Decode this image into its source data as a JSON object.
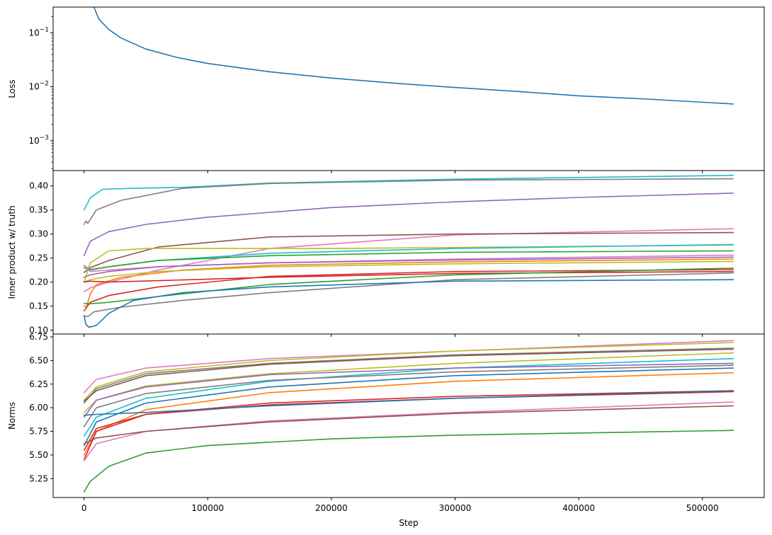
{
  "chart_data": [
    {
      "type": "line",
      "title": "",
      "xlabel": "",
      "ylabel": "Loss",
      "yscale": "log",
      "xlim": [
        -25000,
        550000
      ],
      "ylim": [
        0.00028,
        0.3
      ],
      "grid": false,
      "legend": "none",
      "yticks": [
        {
          "value": 0.1,
          "base": "10",
          "exp": "−1"
        },
        {
          "value": 0.01,
          "base": "10",
          "exp": "−2"
        },
        {
          "value": 0.001,
          "base": "10",
          "exp": "−3"
        }
      ],
      "series": [
        {
          "color": "#1f77b4",
          "x": [
            8000,
            12000,
            20000,
            30000,
            50000,
            75000,
            100000,
            150000,
            200000,
            250000,
            300000,
            350000,
            400000,
            450000,
            525000
          ],
          "y": [
            0.3,
            0.18,
            0.115,
            0.08,
            0.05,
            0.035,
            0.027,
            0.019,
            0.0145,
            0.0117,
            0.0097,
            0.0082,
            0.0068,
            0.006,
            0.0048
          ]
        }
      ]
    },
    {
      "type": "line",
      "title": "",
      "xlabel": "",
      "ylabel": "Inner product w/ truth",
      "xlim": [
        -25000,
        550000
      ],
      "ylim": [
        0.092,
        0.432
      ],
      "grid": false,
      "legend": "none",
      "yticks": [
        "0.10",
        "0.15",
        "0.20",
        "0.25",
        "0.30",
        "0.35",
        "0.40"
      ],
      "series": [
        {
          "color": "#17becf",
          "x": [
            0,
            5000,
            15000,
            40000,
            80000,
            150000,
            300000,
            525000
          ],
          "y": [
            0.35,
            0.375,
            0.393,
            0.395,
            0.397,
            0.406,
            0.414,
            0.422
          ]
        },
        {
          "color": "#7f7f7f",
          "x": [
            0,
            1500,
            3000,
            10000,
            30000,
            80000,
            150000,
            300000,
            525000
          ],
          "y": [
            0.32,
            0.327,
            0.322,
            0.35,
            0.37,
            0.395,
            0.405,
            0.412,
            0.415
          ]
        },
        {
          "color": "#9467bd",
          "x": [
            0,
            5000,
            20000,
            50000,
            100000,
            200000,
            300000,
            400000,
            525000
          ],
          "y": [
            0.255,
            0.285,
            0.305,
            0.32,
            0.335,
            0.355,
            0.367,
            0.376,
            0.385
          ]
        },
        {
          "color": "#e377c2",
          "x": [
            0,
            5000,
            20000,
            60000,
            150000,
            300000,
            525000
          ],
          "y": [
            0.18,
            0.188,
            0.2,
            0.225,
            0.27,
            0.298,
            0.311
          ]
        },
        {
          "color": "#8c564b",
          "x": [
            0,
            5000,
            20000,
            60000,
            150000,
            300000,
            525000
          ],
          "y": [
            0.22,
            0.23,
            0.245,
            0.273,
            0.294,
            0.3,
            0.303
          ]
        },
        {
          "color": "#bcbd22",
          "x": [
            0,
            5000,
            20000,
            50000,
            100000,
            200000,
            300000,
            525000
          ],
          "y": [
            0.2,
            0.24,
            0.265,
            0.27,
            0.27,
            0.27,
            0.272,
            0.277
          ]
        },
        {
          "color": "#17becf",
          "x": [
            0,
            5000,
            20000,
            60000,
            150000,
            300000,
            525000
          ],
          "y": [
            0.235,
            0.225,
            0.232,
            0.245,
            0.26,
            0.27,
            0.278
          ]
        },
        {
          "color": "#2ca02c",
          "x": [
            0,
            5000,
            20000,
            60000,
            150000,
            300000,
            525000
          ],
          "y": [
            0.23,
            0.226,
            0.232,
            0.245,
            0.255,
            0.262,
            0.265
          ]
        },
        {
          "color": "#e377c2",
          "x": [
            0,
            5000,
            20000,
            60000,
            150000,
            300000,
            525000
          ],
          "y": [
            0.235,
            0.222,
            0.225,
            0.232,
            0.24,
            0.248,
            0.256
          ]
        },
        {
          "color": "#9467bd",
          "x": [
            0,
            5000,
            20000,
            60000,
            150000,
            300000,
            525000
          ],
          "y": [
            0.21,
            0.215,
            0.222,
            0.232,
            0.24,
            0.246,
            0.252
          ]
        },
        {
          "color": "#ff7f0e",
          "x": [
            0,
            2000,
            5000,
            10000,
            30000,
            80000,
            150000,
            300000,
            525000
          ],
          "y": [
            0.15,
            0.148,
            0.175,
            0.195,
            0.21,
            0.225,
            0.235,
            0.242,
            0.248
          ]
        },
        {
          "color": "#bcbd22",
          "x": [
            0,
            5000,
            20000,
            60000,
            150000,
            300000,
            525000
          ],
          "y": [
            0.2,
            0.205,
            0.212,
            0.222,
            0.232,
            0.238,
            0.243
          ]
        },
        {
          "color": "#7f7f7f",
          "x": [
            0,
            3000,
            8000,
            30000,
            80000,
            150000,
            300000,
            525000
          ],
          "y": [
            0.13,
            0.128,
            0.138,
            0.148,
            0.162,
            0.178,
            0.205,
            0.219
          ]
        },
        {
          "color": "#d62728",
          "x": [
            0,
            5000,
            20000,
            60000,
            150000,
            300000,
            525000
          ],
          "y": [
            0.2,
            0.202,
            0.2,
            0.203,
            0.21,
            0.218,
            0.222
          ]
        },
        {
          "color": "#d62728",
          "x": [
            0,
            5000,
            20000,
            60000,
            150000,
            300000,
            525000
          ],
          "y": [
            0.14,
            0.158,
            0.172,
            0.19,
            0.212,
            0.222,
            0.226
          ]
        },
        {
          "color": "#2ca02c",
          "x": [
            0,
            5000,
            20000,
            60000,
            150000,
            300000,
            525000
          ],
          "y": [
            0.155,
            0.155,
            0.158,
            0.17,
            0.195,
            0.215,
            0.229
          ]
        },
        {
          "color": "#1f77b4",
          "x": [
            0,
            1500,
            4000,
            10000,
            20000,
            40000,
            80000,
            150000,
            300000,
            525000
          ],
          "y": [
            0.13,
            0.112,
            0.106,
            0.11,
            0.135,
            0.162,
            0.178,
            0.19,
            0.202,
            0.205
          ]
        }
      ]
    },
    {
      "type": "line",
      "title": "",
      "xlabel": "Step",
      "ylabel": "Norms",
      "xlim": [
        -25000,
        550000
      ],
      "ylim": [
        5.05,
        6.78
      ],
      "grid": false,
      "legend": "none",
      "yticks": [
        "5.25",
        "5.50",
        "5.75",
        "6.00",
        "6.25",
        "6.50",
        "6.75"
      ],
      "xticks": [
        "0",
        "100000",
        "200000",
        "300000",
        "400000",
        "500000"
      ],
      "xtick_values": [
        0,
        100000,
        200000,
        300000,
        400000,
        500000
      ],
      "series": [
        {
          "color": "#e377c2",
          "x": [
            0,
            10000,
            50000,
            150000,
            300000,
            525000
          ],
          "y": [
            6.16,
            6.3,
            6.42,
            6.52,
            6.6,
            6.71
          ]
        },
        {
          "color": "#bcbd22",
          "x": [
            0,
            10000,
            50000,
            150000,
            300000,
            525000
          ],
          "y": [
            6.08,
            6.22,
            6.38,
            6.5,
            6.6,
            6.69
          ]
        },
        {
          "color": "#7f7f7f",
          "x": [
            0,
            10000,
            50000,
            150000,
            300000,
            525000
          ],
          "y": [
            6.05,
            6.2,
            6.36,
            6.47,
            6.56,
            6.63
          ]
        },
        {
          "color": "#8c564b",
          "x": [
            0,
            10000,
            50000,
            150000,
            300000,
            525000
          ],
          "y": [
            6.07,
            6.18,
            6.34,
            6.46,
            6.55,
            6.62
          ]
        },
        {
          "color": "#bcbd22",
          "x": [
            0,
            10000,
            50000,
            150000,
            300000,
            525000
          ],
          "y": [
            5.95,
            6.08,
            6.23,
            6.36,
            6.47,
            6.58
          ]
        },
        {
          "color": "#17becf",
          "x": [
            0,
            10000,
            50000,
            150000,
            300000,
            525000
          ],
          "y": [
            5.7,
            5.9,
            6.1,
            6.28,
            6.42,
            6.52
          ]
        },
        {
          "color": "#9467bd",
          "x": [
            0,
            10000,
            50000,
            150000,
            300000,
            525000
          ],
          "y": [
            5.9,
            6.08,
            6.22,
            6.35,
            6.42,
            6.47
          ]
        },
        {
          "color": "#7f7f7f",
          "x": [
            0,
            10000,
            50000,
            150000,
            300000,
            525000
          ],
          "y": [
            5.8,
            6.0,
            6.15,
            6.29,
            6.38,
            6.45
          ]
        },
        {
          "color": "#1f77b4",
          "x": [
            0,
            10000,
            50000,
            150000,
            300000,
            525000
          ],
          "y": [
            5.6,
            5.85,
            6.05,
            6.22,
            6.34,
            6.42
          ]
        },
        {
          "color": "#ff7f0e",
          "x": [
            0,
            10000,
            50000,
            150000,
            300000,
            525000
          ],
          "y": [
            5.5,
            5.75,
            5.98,
            6.16,
            6.28,
            6.37
          ]
        },
        {
          "color": "#d62728",
          "x": [
            0,
            10000,
            50000,
            150000,
            300000,
            525000
          ],
          "y": [
            5.45,
            5.75,
            5.93,
            6.05,
            6.12,
            6.18
          ]
        },
        {
          "color": "#d62728",
          "x": [
            0,
            10000,
            50000,
            150000,
            300000,
            525000
          ],
          "y": [
            5.55,
            5.78,
            5.93,
            6.03,
            6.1,
            6.17
          ]
        },
        {
          "color": "#1f77b4",
          "x": [
            0,
            10000,
            50000,
            150000,
            300000,
            525000
          ],
          "y": [
            5.92,
            5.93,
            5.95,
            6.02,
            6.1,
            6.18
          ]
        },
        {
          "color": "#e377c2",
          "x": [
            0,
            10000,
            50000,
            150000,
            300000,
            525000
          ],
          "y": [
            5.44,
            5.62,
            5.75,
            5.86,
            5.95,
            6.06
          ]
        },
        {
          "color": "#8c564b",
          "x": [
            0,
            10000,
            50000,
            150000,
            300000,
            525000
          ],
          "y": [
            5.62,
            5.68,
            5.75,
            5.85,
            5.94,
            6.02
          ]
        },
        {
          "color": "#2ca02c",
          "x": [
            0,
            5000,
            20000,
            50000,
            100000,
            200000,
            300000,
            525000
          ],
          "y": [
            5.11,
            5.22,
            5.38,
            5.52,
            5.6,
            5.67,
            5.71,
            5.76
          ]
        }
      ]
    }
  ]
}
